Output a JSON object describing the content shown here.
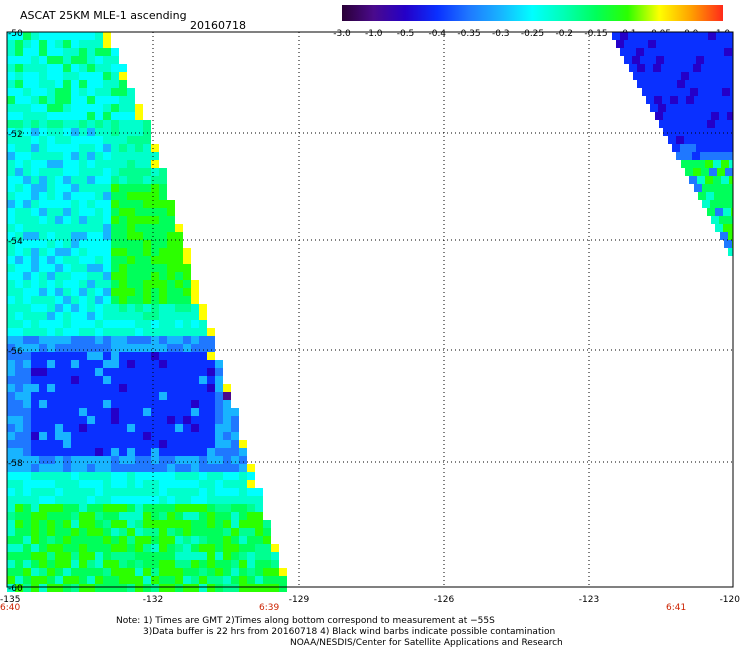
{
  "header": {
    "title": "ASCAT 25KM MLE-1 ascending",
    "date": "20160718"
  },
  "colorbar": {
    "tick_labels": [
      "-3.0",
      "-1.0",
      "-0.5",
      "-0.4",
      "-0.35",
      "-0.3",
      "-0.25",
      "-0.2",
      "-0.15",
      "-0.1",
      "-0.05",
      "0.0",
      "1.0"
    ],
    "colors": [
      "#2a0036",
      "#4a0a8c",
      "#2400c8",
      "#0a30ff",
      "#1f78ff",
      "#18b4ff",
      "#00ffff",
      "#00ffb4",
      "#00ff5a",
      "#2cff00",
      "#ffff00",
      "#ff9f00",
      "#ff2a1a"
    ]
  },
  "map": {
    "x_ticks": [
      "-135",
      "-132",
      "-129",
      "-126",
      "-123",
      "-120"
    ],
    "y_ticks": [
      "-50",
      "-52",
      "-54",
      "-56",
      "-58",
      "-60"
    ],
    "times": [
      "6:40",
      "6:39",
      "6:41"
    ],
    "time_color": "#cc2200"
  },
  "notes": {
    "line1": "Note: 1) Times are GMT 2)Times along bottom correspond to measurement at −55S",
    "line2": "3)Data buffer is 22 hrs from 20160718 4) Black wind barbs indicate possible contamination",
    "line3": "NOAA/NESDIS/Center for Satellite Applications and Research"
  }
}
